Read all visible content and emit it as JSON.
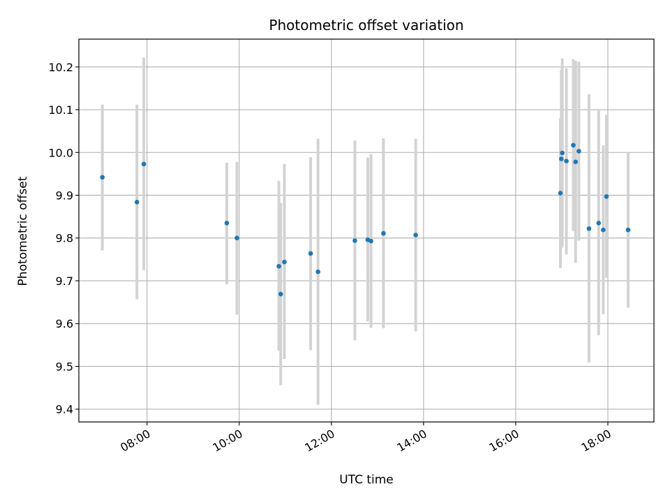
{
  "chart_data": {
    "type": "scatter",
    "title": "Photometric offset variation",
    "xlabel": "UTC time",
    "ylabel": "Photometric offset",
    "x_unit": "hours UTC",
    "xlim": [
      6.52,
      19.0
    ],
    "ylim": [
      9.37,
      10.265
    ],
    "grid": true,
    "marker_color": "#1f77b4",
    "errorbar_color": "#d3d3d3",
    "x_ticks": [
      {
        "value": 8,
        "label": "08:00"
      },
      {
        "value": 10,
        "label": "10:00"
      },
      {
        "value": 12,
        "label": "12:00"
      },
      {
        "value": 14,
        "label": "14:00"
      },
      {
        "value": 16,
        "label": "16:00"
      },
      {
        "value": 18,
        "label": "18:00"
      }
    ],
    "y_ticks": [
      {
        "value": 9.4,
        "label": "9.4"
      },
      {
        "value": 9.5,
        "label": "9.5"
      },
      {
        "value": 9.6,
        "label": "9.6"
      },
      {
        "value": 9.7,
        "label": "9.7"
      },
      {
        "value": 9.8,
        "label": "9.8"
      },
      {
        "value": 9.9,
        "label": "9.9"
      },
      {
        "value": 10.0,
        "label": "10.0"
      },
      {
        "value": 10.1,
        "label": "10.1"
      },
      {
        "value": 10.2,
        "label": "10.2"
      }
    ],
    "points": [
      {
        "x": 7.03,
        "y": 9.942,
        "ylo": 9.771,
        "yhi": 10.112
      },
      {
        "x": 7.78,
        "y": 9.884,
        "ylo": 9.657,
        "yhi": 10.112
      },
      {
        "x": 7.93,
        "y": 9.973,
        "ylo": 9.725,
        "yhi": 10.222
      },
      {
        "x": 9.73,
        "y": 9.835,
        "ylo": 9.692,
        "yhi": 9.976
      },
      {
        "x": 9.95,
        "y": 9.8,
        "ylo": 9.621,
        "yhi": 9.978
      },
      {
        "x": 10.86,
        "y": 9.734,
        "ylo": 9.537,
        "yhi": 9.933
      },
      {
        "x": 10.9,
        "y": 9.669,
        "ylo": 9.456,
        "yhi": 9.882
      },
      {
        "x": 10.98,
        "y": 9.744,
        "ylo": 9.517,
        "yhi": 9.973
      },
      {
        "x": 11.55,
        "y": 9.764,
        "ylo": 9.538,
        "yhi": 9.989
      },
      {
        "x": 11.71,
        "y": 9.721,
        "ylo": 9.41,
        "yhi": 10.032
      },
      {
        "x": 12.51,
        "y": 9.794,
        "ylo": 9.561,
        "yhi": 10.028
      },
      {
        "x": 12.79,
        "y": 9.796,
        "ylo": 9.605,
        "yhi": 9.988
      },
      {
        "x": 12.86,
        "y": 9.793,
        "ylo": 9.59,
        "yhi": 9.996
      },
      {
        "x": 13.13,
        "y": 9.811,
        "ylo": 9.589,
        "yhi": 10.033
      },
      {
        "x": 13.83,
        "y": 9.807,
        "ylo": 9.582,
        "yhi": 10.032
      },
      {
        "x": 16.97,
        "y": 9.905,
        "ylo": 9.73,
        "yhi": 10.08
      },
      {
        "x": 16.99,
        "y": 9.985,
        "ylo": 9.776,
        "yhi": 10.193
      },
      {
        "x": 17.01,
        "y": 9.999,
        "ylo": 9.78,
        "yhi": 10.22
      },
      {
        "x": 17.1,
        "y": 9.98,
        "ylo": 9.762,
        "yhi": 10.197
      },
      {
        "x": 17.25,
        "y": 10.017,
        "ylo": 9.816,
        "yhi": 10.218
      },
      {
        "x": 17.3,
        "y": 9.978,
        "ylo": 9.742,
        "yhi": 10.214
      },
      {
        "x": 17.37,
        "y": 10.003,
        "ylo": 9.794,
        "yhi": 10.212
      },
      {
        "x": 17.59,
        "y": 9.822,
        "ylo": 9.509,
        "yhi": 10.136
      },
      {
        "x": 17.8,
        "y": 9.835,
        "ylo": 9.573,
        "yhi": 10.098
      },
      {
        "x": 17.9,
        "y": 9.819,
        "ylo": 9.622,
        "yhi": 10.017
      },
      {
        "x": 17.97,
        "y": 9.897,
        "ylo": 9.707,
        "yhi": 10.088
      },
      {
        "x": 18.44,
        "y": 9.819,
        "ylo": 9.637,
        "yhi": 10.0
      }
    ]
  }
}
